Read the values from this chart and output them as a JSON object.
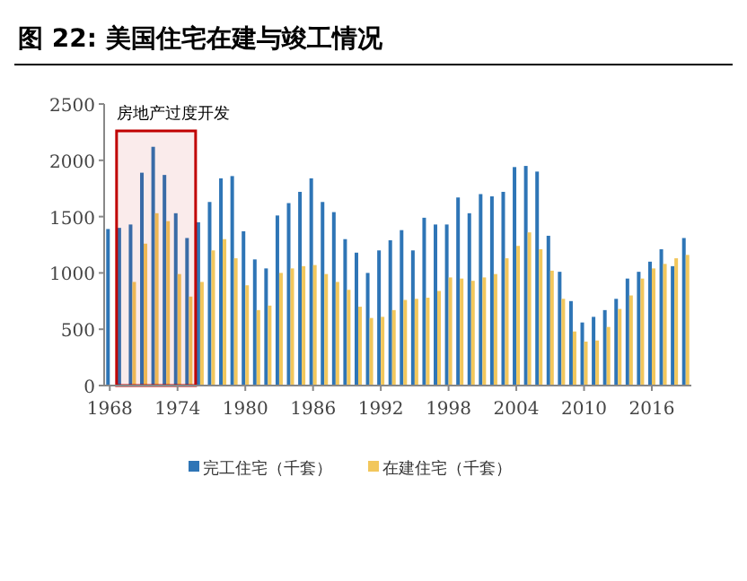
{
  "chart_data": {
    "type": "bar",
    "title": "图 22:  美国住宅在建与竣工情况",
    "x": [
      1968,
      1969,
      1970,
      1971,
      1972,
      1973,
      1974,
      1975,
      1976,
      1977,
      1978,
      1979,
      1980,
      1981,
      1982,
      1983,
      1984,
      1985,
      1986,
      1987,
      1988,
      1989,
      1990,
      1991,
      1992,
      1993,
      1994,
      1995,
      1996,
      1997,
      1998,
      1999,
      2000,
      2001,
      2002,
      2003,
      2004,
      2005,
      2006,
      2007,
      2008,
      2009,
      2010,
      2011,
      2012,
      2013,
      2014,
      2015,
      2016,
      2017,
      2018,
      2019
    ],
    "series": [
      {
        "name": "完工住宅（千套）",
        "color": "#2e75b6",
        "values": [
          1390,
          1400,
          1430,
          1890,
          2120,
          1870,
          1530,
          1310,
          1450,
          1630,
          1840,
          1860,
          1370,
          1120,
          1040,
          1510,
          1620,
          1720,
          1840,
          1630,
          1540,
          1300,
          1180,
          1000,
          1200,
          1290,
          1380,
          1200,
          1490,
          1430,
          1430,
          1670,
          1530,
          1700,
          1680,
          1720,
          1940,
          1950,
          1900,
          1330,
          1010,
          750,
          560,
          610,
          670,
          770,
          950,
          1010,
          1100,
          1210,
          1060,
          1310
        ]
      },
      {
        "name": "在建住宅（千套）",
        "color": "#f2c75c",
        "values": [
          null,
          null,
          920,
          1260,
          1530,
          1460,
          990,
          790,
          920,
          1200,
          1300,
          1130,
          890,
          670,
          710,
          1000,
          1040,
          1060,
          1070,
          990,
          920,
          850,
          700,
          600,
          610,
          670,
          760,
          770,
          780,
          840,
          960,
          950,
          930,
          960,
          990,
          1130,
          1240,
          1360,
          1210,
          1020,
          770,
          480,
          390,
          400,
          520,
          680,
          800,
          950,
          1040,
          1080,
          1130,
          1160
        ]
      }
    ],
    "xlim": [
      1967.5,
      2019.5
    ],
    "xticks": [
      1968,
      1974,
      1980,
      1986,
      1992,
      1998,
      2004,
      2010,
      2016
    ],
    "ylim": [
      0,
      2500
    ],
    "yticks": [
      0,
      500,
      1000,
      1500,
      2000,
      2500
    ],
    "bands": [
      {
        "axis": "x",
        "from": 1968.6,
        "to": 1975.6,
        "label": "房地产过度开发",
        "color": "#c00000"
      }
    ],
    "grid": false,
    "legend": "bottom"
  }
}
